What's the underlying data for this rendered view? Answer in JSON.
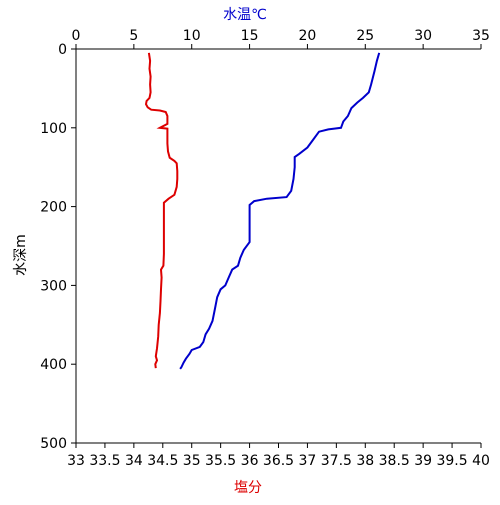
{
  "chart_data": {
    "type": "line",
    "title": "",
    "y_axis": {
      "label": "水深m",
      "range": [
        0,
        500
      ],
      "inverted": true,
      "ticks": [
        0,
        100,
        200,
        300,
        400,
        500
      ]
    },
    "x_axis_bottom": {
      "label": "塩分",
      "range": [
        33,
        40
      ],
      "ticks": [
        "33",
        "33.5",
        "34",
        "34.5",
        "35",
        "35.5",
        "36",
        "36.5",
        "37",
        "37.5",
        "38",
        "38.5",
        "39",
        "39.5",
        "40"
      ]
    },
    "x_axis_top": {
      "label": "水温℃",
      "range": [
        0,
        35
      ],
      "ticks": [
        "0",
        "5",
        "10",
        "15",
        "20",
        "25",
        "30",
        "35"
      ]
    },
    "grid": false,
    "series": [
      {
        "axis": "bottom",
        "color": "#dd0000",
        "points": [
          [
            34.26,
            5
          ],
          [
            34.28,
            15
          ],
          [
            34.27,
            25
          ],
          [
            34.29,
            35
          ],
          [
            34.28,
            45
          ],
          [
            34.29,
            55
          ],
          [
            34.27,
            62
          ],
          [
            34.22,
            66
          ],
          [
            34.21,
            70
          ],
          [
            34.24,
            74
          ],
          [
            34.3,
            77
          ],
          [
            34.45,
            78
          ],
          [
            34.55,
            80
          ],
          [
            34.58,
            85
          ],
          [
            34.58,
            95
          ],
          [
            34.45,
            100
          ],
          [
            34.58,
            101
          ],
          [
            34.58,
            110
          ],
          [
            34.58,
            120
          ],
          [
            34.59,
            130
          ],
          [
            34.62,
            138
          ],
          [
            34.7,
            142
          ],
          [
            34.74,
            145
          ],
          [
            34.75,
            155
          ],
          [
            34.75,
            165
          ],
          [
            34.74,
            175
          ],
          [
            34.7,
            185
          ],
          [
            34.6,
            190
          ],
          [
            34.52,
            195
          ],
          [
            34.52,
            200
          ],
          [
            34.52,
            215
          ],
          [
            34.52,
            230
          ],
          [
            34.52,
            245
          ],
          [
            34.52,
            260
          ],
          [
            34.51,
            275
          ],
          [
            34.47,
            280
          ],
          [
            34.48,
            290
          ],
          [
            34.47,
            305
          ],
          [
            34.46,
            320
          ],
          [
            34.45,
            335
          ],
          [
            34.43,
            350
          ],
          [
            34.42,
            365
          ],
          [
            34.4,
            380
          ],
          [
            34.38,
            390
          ],
          [
            34.4,
            395
          ],
          [
            34.37,
            400
          ],
          [
            34.38,
            405
          ]
        ]
      },
      {
        "axis": "top",
        "color": "#0000cc",
        "points": [
          [
            26.2,
            5
          ],
          [
            26.0,
            15
          ],
          [
            25.8,
            28
          ],
          [
            25.5,
            45
          ],
          [
            25.3,
            55
          ],
          [
            24.8,
            62
          ],
          [
            24.3,
            68
          ],
          [
            23.8,
            75
          ],
          [
            23.5,
            85
          ],
          [
            23.1,
            92
          ],
          [
            22.9,
            100
          ],
          [
            21.8,
            102
          ],
          [
            21.0,
            105
          ],
          [
            20.5,
            115
          ],
          [
            20.0,
            125
          ],
          [
            19.3,
            133
          ],
          [
            18.9,
            137
          ],
          [
            18.9,
            150
          ],
          [
            18.8,
            165
          ],
          [
            18.6,
            180
          ],
          [
            18.2,
            188
          ],
          [
            16.5,
            190
          ],
          [
            15.4,
            193
          ],
          [
            15.0,
            198
          ],
          [
            15.0,
            210
          ],
          [
            15.0,
            230
          ],
          [
            15.0,
            245
          ],
          [
            14.5,
            255
          ],
          [
            14.2,
            265
          ],
          [
            14.0,
            275
          ],
          [
            13.5,
            280
          ],
          [
            13.2,
            290
          ],
          [
            12.9,
            300
          ],
          [
            12.5,
            305
          ],
          [
            12.2,
            315
          ],
          [
            12.0,
            330
          ],
          [
            11.8,
            345
          ],
          [
            11.5,
            355
          ],
          [
            11.2,
            362
          ],
          [
            11.0,
            372
          ],
          [
            10.7,
            378
          ],
          [
            10.0,
            382
          ],
          [
            9.8,
            387
          ],
          [
            9.5,
            393
          ],
          [
            9.3,
            398
          ],
          [
            9.1,
            404
          ],
          [
            9.0,
            406
          ]
        ]
      }
    ]
  }
}
